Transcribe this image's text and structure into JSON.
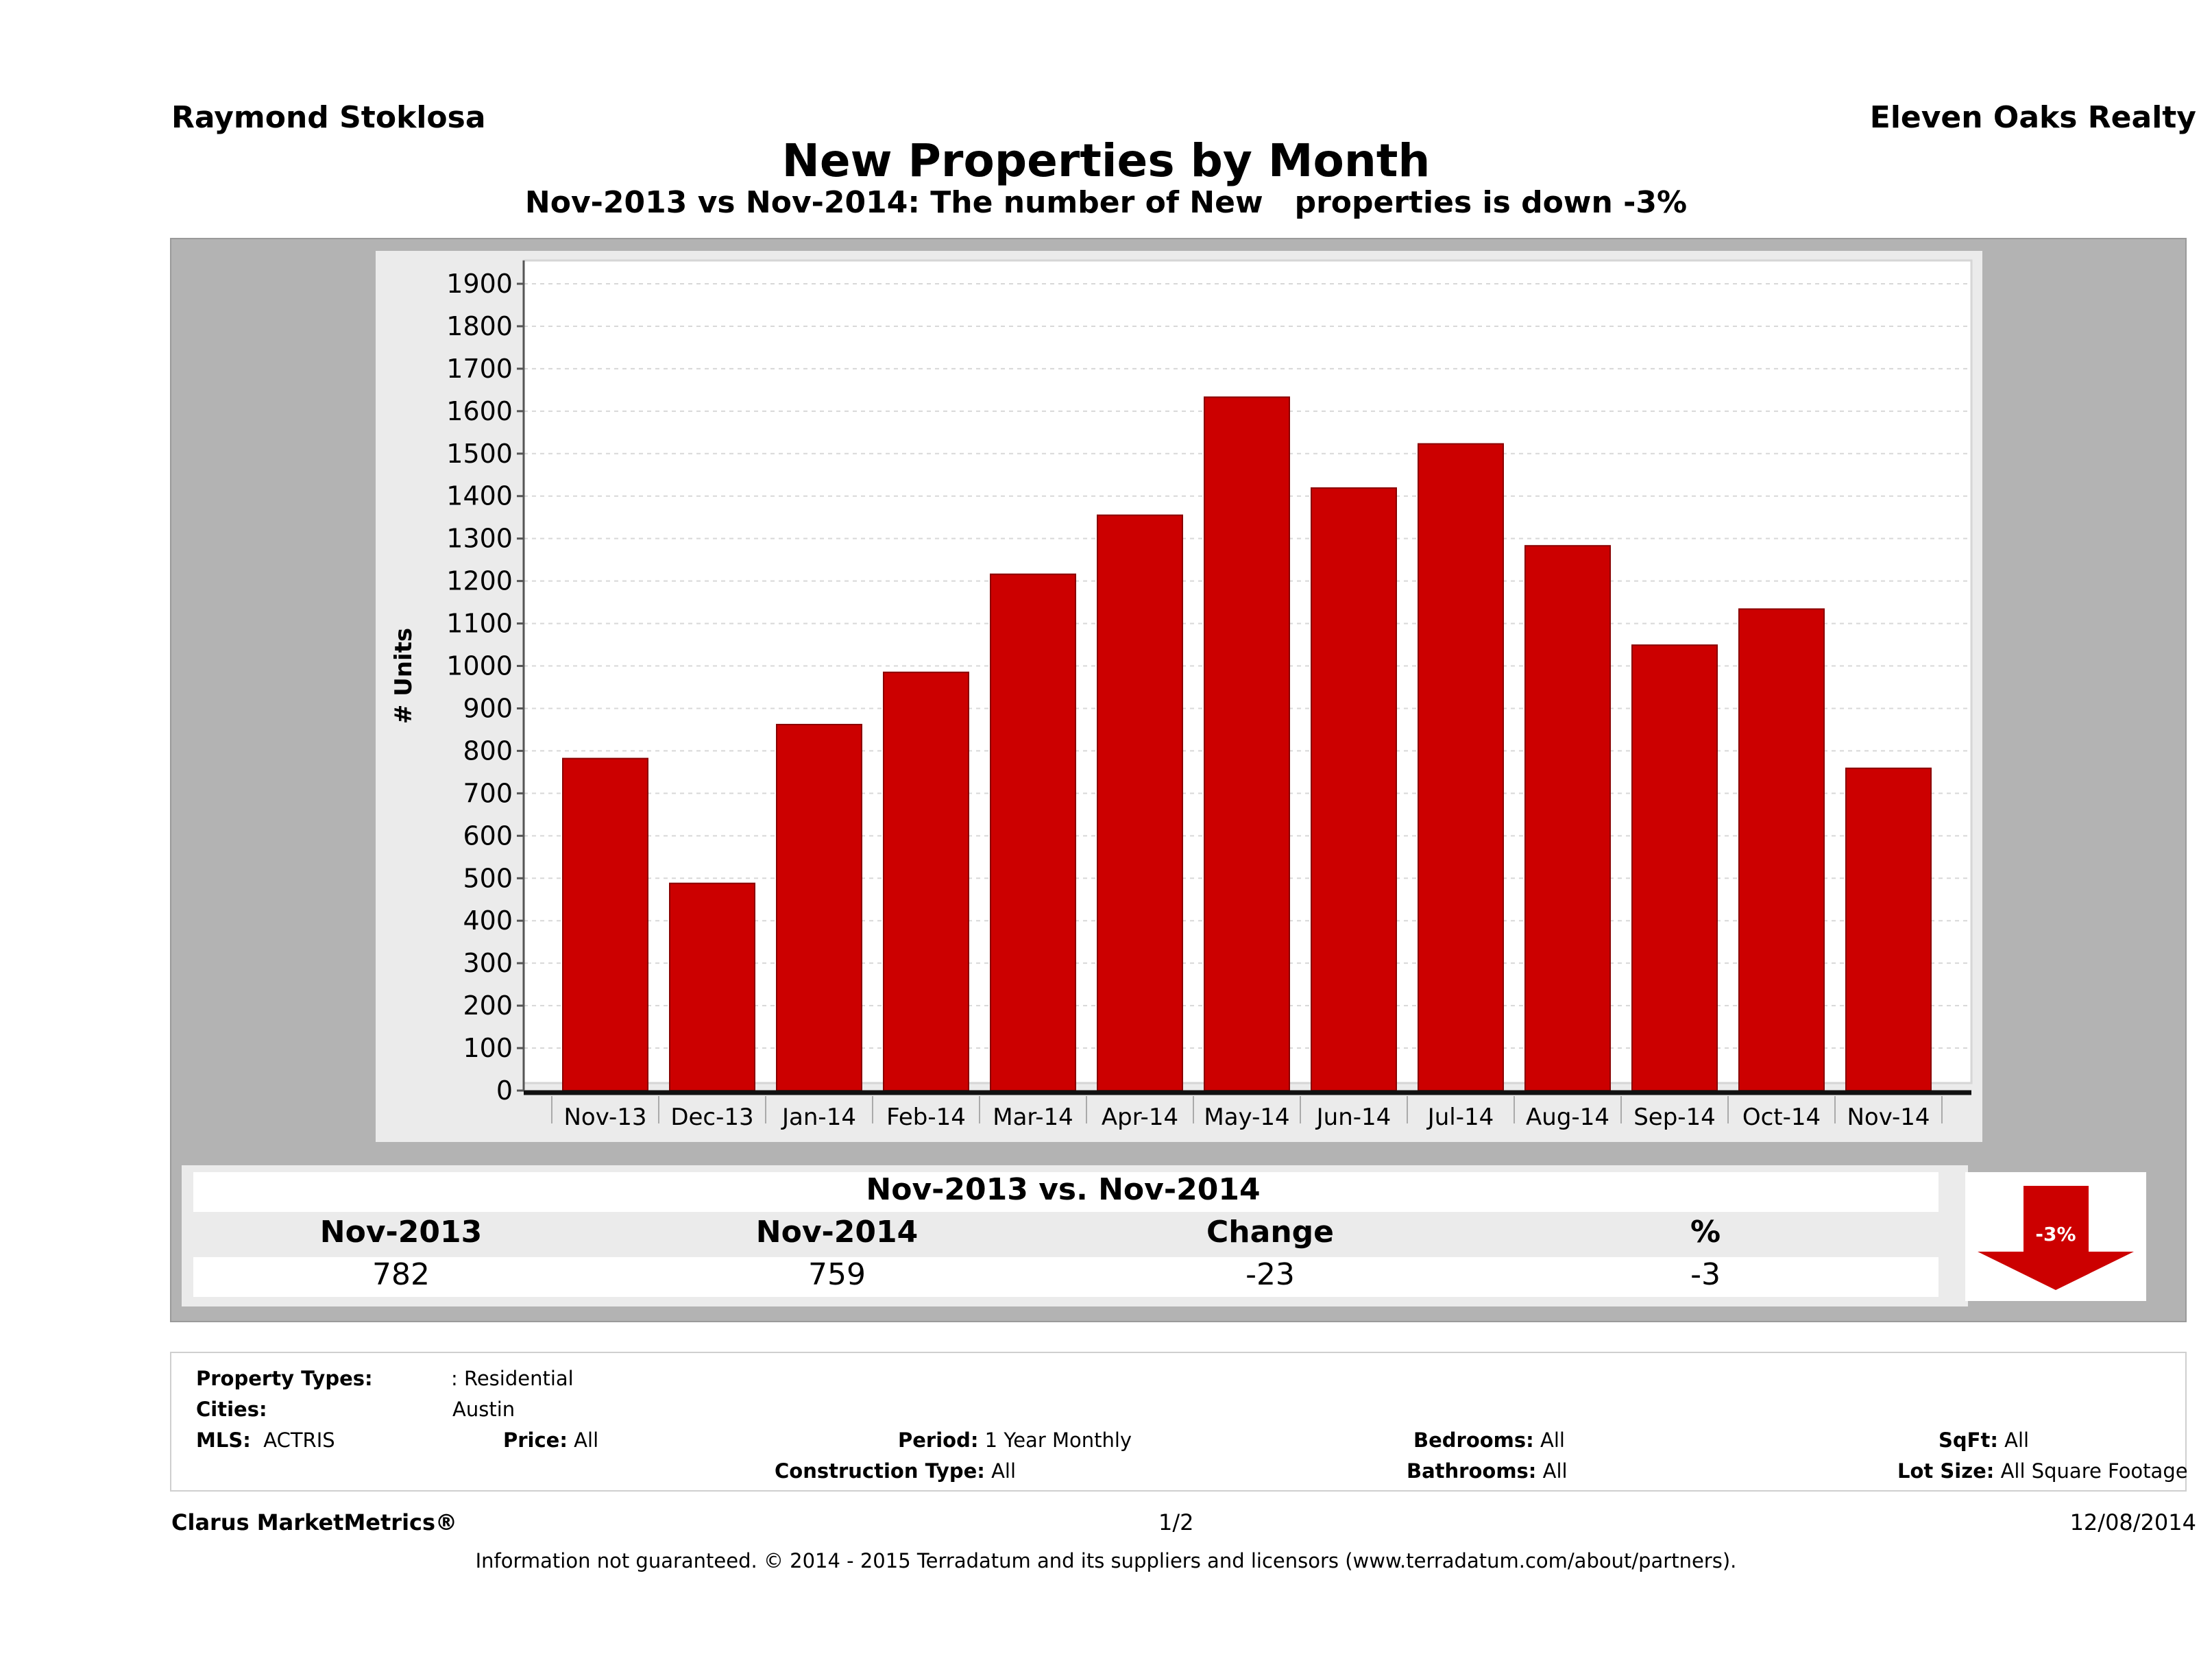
{
  "header": {
    "agent_name": "Raymond Stoklosa",
    "company": "Eleven Oaks Realty",
    "title": "New Properties by Month",
    "subtitle": "Nov-2013 vs Nov-2014: The number of New   properties is down -3%"
  },
  "chart_data": {
    "type": "bar",
    "categories": [
      "Nov-13",
      "Dec-13",
      "Jan-14",
      "Feb-14",
      "Mar-14",
      "Apr-14",
      "May-14",
      "Jun-14",
      "Jul-14",
      "Aug-14",
      "Sep-14",
      "Oct-14",
      "Nov-14"
    ],
    "values": [
      782,
      488,
      862,
      985,
      1216,
      1355,
      1633,
      1419,
      1523,
      1283,
      1049,
      1134,
      759
    ],
    "xlabel": "",
    "ylabel": "# Units",
    "ylim": [
      0,
      1900
    ],
    "yticks": [
      0,
      100,
      200,
      300,
      400,
      500,
      600,
      700,
      800,
      900,
      1000,
      1100,
      1200,
      1300,
      1400,
      1500,
      1600,
      1700,
      1800,
      1900
    ],
    "grid": true,
    "bar_color": "#cc0000"
  },
  "summary": {
    "title": "Nov-2013 vs. Nov-2014",
    "headers": [
      "Nov-2013",
      "Nov-2014",
      "Change",
      "%"
    ],
    "values": [
      "782",
      "759",
      "-23",
      "-3"
    ],
    "badge": "-3%",
    "badge_color": "#cc0000"
  },
  "info": {
    "property_types_label": "Property Types:",
    "property_types_value": ": Residential",
    "cities_label": "Cities:",
    "cities_value": "Austin",
    "mls_label": "MLS:",
    "mls_value": "ACTRIS",
    "price_label": "Price:",
    "price_value": "All",
    "period_label": "Period:",
    "period_value": "1 Year Monthly",
    "construction_label": "Construction Type:",
    "construction_value": "All",
    "bedrooms_label": "Bedrooms:",
    "bedrooms_value": "All",
    "bathrooms_label": "Bathrooms:",
    "bathrooms_value": "All",
    "sqft_label": "SqFt:",
    "sqft_value": "All",
    "lotsize_label": "Lot Size:",
    "lotsize_value": "All Square Footage"
  },
  "footer": {
    "brand": "Clarus MarketMetrics®",
    "page": "1/2",
    "date": "12/08/2014",
    "disclaimer": "Information not guaranteed. © 2014 - 2015 Terradatum and its suppliers and licensors (www.terradatum.com/about/partners)."
  }
}
